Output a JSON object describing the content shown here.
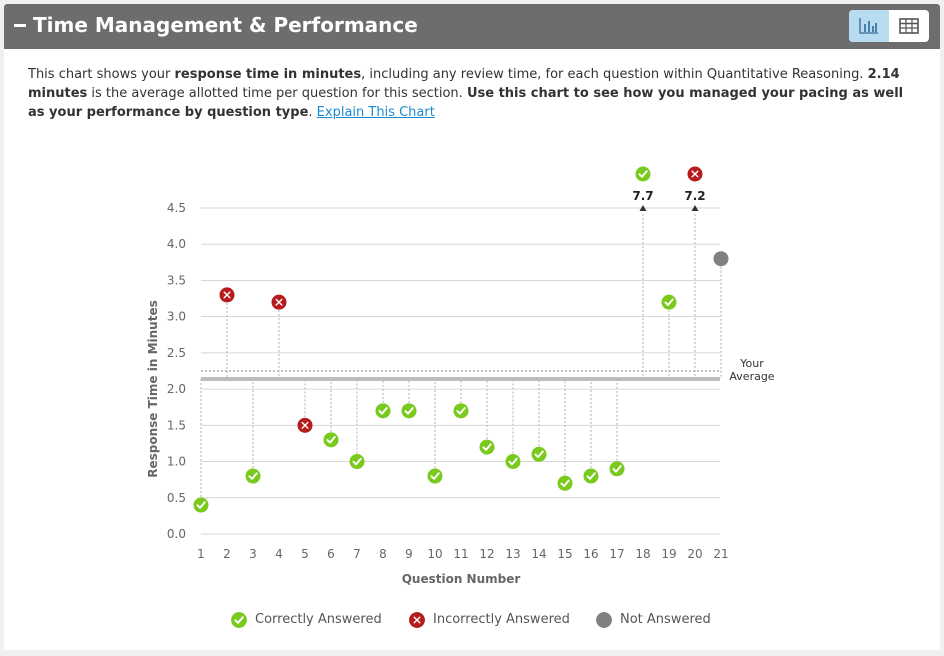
{
  "header": {
    "title": "Time Management & Performance",
    "collapse_symbol": "minus-icon",
    "view_toggle": [
      "bar-chart-icon",
      "table-icon"
    ]
  },
  "description": {
    "p1": "This chart shows your ",
    "b1": "response time in minutes",
    "p2": ", including any review time, for each question within Quantitative Reasoning. ",
    "b2": "2.14 minutes",
    "p3": " is the average allotted time per question for this section. ",
    "b3": "Use this chart to see how you managed your pacing as well as your performance by question type",
    "p4": ". ",
    "link": "Explain This Chart"
  },
  "colors": {
    "correct": "#7ac91e",
    "incorrect": "#b61c1c",
    "not_answered": "#808080",
    "header_bg": "#6d6d6d",
    "toggle_active": "#b7dcf2",
    "link": "#1c8ad1"
  },
  "legend": {
    "correct": "Correctly Answered",
    "incorrect": "Incorrectly Answered",
    "not_answered": "Not Answered"
  },
  "chart_data": {
    "type": "scatter",
    "title": "",
    "xlabel": "Question Number",
    "ylabel": "Response Time in Minutes",
    "ylim": [
      0,
      4.5
    ],
    "yticks": [
      "0.0",
      "0.5",
      "1.0",
      "1.5",
      "2.0",
      "2.5",
      "3.0",
      "3.5",
      "4.0",
      "4.5"
    ],
    "xticks": [
      "1",
      "2",
      "3",
      "4",
      "5",
      "6",
      "7",
      "8",
      "9",
      "10",
      "11",
      "12",
      "13",
      "14",
      "15",
      "16",
      "17",
      "18",
      "19",
      "20",
      "21"
    ],
    "average_allotted": 2.14,
    "average_label": [
      "Your",
      "Average"
    ],
    "grid": true,
    "legend_position": "bottom",
    "points": [
      {
        "q": 1,
        "time": 0.4,
        "status": "correct"
      },
      {
        "q": 2,
        "time": 3.3,
        "status": "incorrect"
      },
      {
        "q": 3,
        "time": 0.8,
        "status": "correct"
      },
      {
        "q": 4,
        "time": 3.2,
        "status": "incorrect"
      },
      {
        "q": 5,
        "time": 1.5,
        "status": "incorrect"
      },
      {
        "q": 6,
        "time": 1.3,
        "status": "correct"
      },
      {
        "q": 7,
        "time": 1.0,
        "status": "correct"
      },
      {
        "q": 8,
        "time": 1.7,
        "status": "correct"
      },
      {
        "q": 9,
        "time": 1.7,
        "status": "correct"
      },
      {
        "q": 10,
        "time": 0.8,
        "status": "correct"
      },
      {
        "q": 11,
        "time": 1.7,
        "status": "correct"
      },
      {
        "q": 12,
        "time": 1.2,
        "status": "correct"
      },
      {
        "q": 13,
        "time": 1.0,
        "status": "correct"
      },
      {
        "q": 14,
        "time": 1.1,
        "status": "correct"
      },
      {
        "q": 15,
        "time": 0.7,
        "status": "correct"
      },
      {
        "q": 16,
        "time": 0.8,
        "status": "correct"
      },
      {
        "q": 17,
        "time": 0.9,
        "status": "correct"
      },
      {
        "q": 18,
        "time": 7.7,
        "status": "correct",
        "label": "7.7"
      },
      {
        "q": 19,
        "time": 3.2,
        "status": "correct"
      },
      {
        "q": 20,
        "time": 7.2,
        "status": "incorrect",
        "label": "7.2"
      },
      {
        "q": 21,
        "time": 3.8,
        "status": "not_answered"
      }
    ]
  }
}
